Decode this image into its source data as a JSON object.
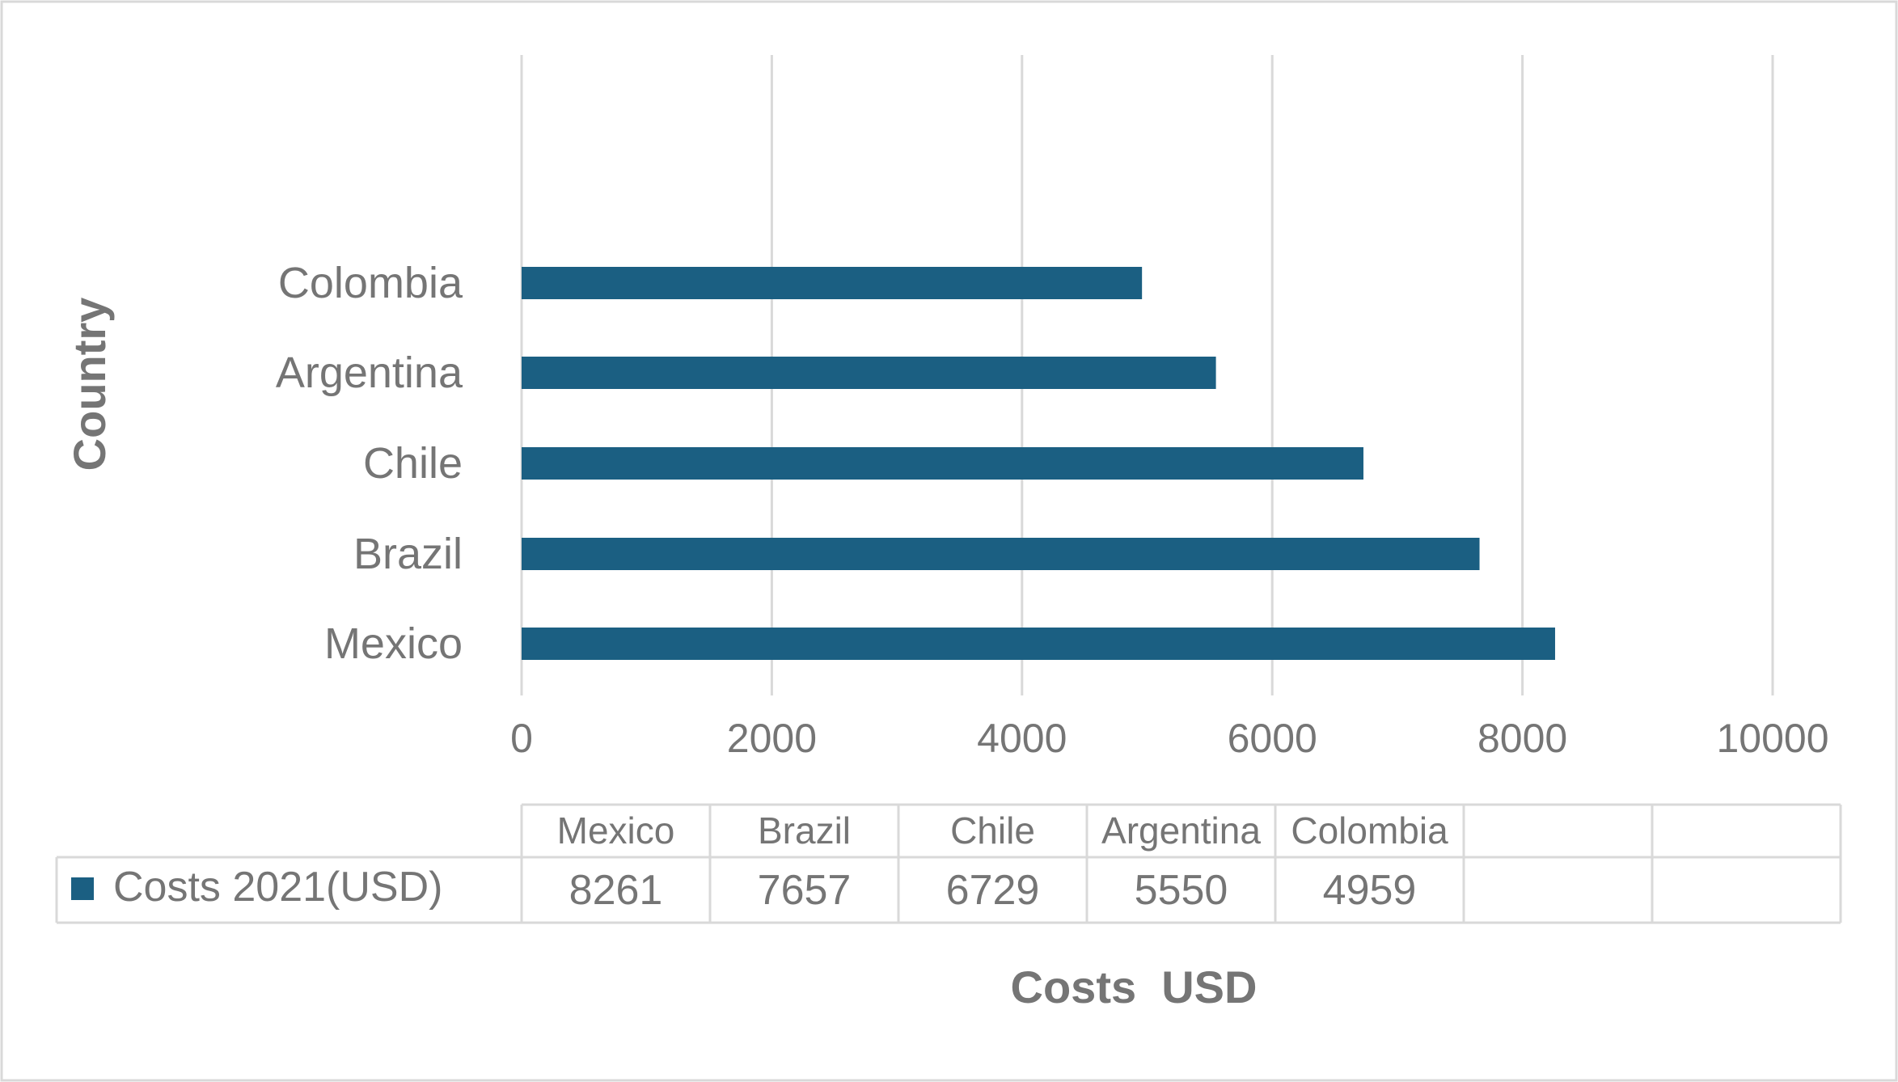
{
  "chart_data": {
    "type": "bar",
    "orientation": "horizontal",
    "title": "",
    "xlabel": "Costs  USD",
    "ylabel": "Country",
    "categories": [
      "Mexico",
      "Brazil",
      "Chile",
      "Argentina",
      "Colombia"
    ],
    "series": [
      {
        "name": "Costs 2021(USD)",
        "values": [
          8261,
          7657,
          6729,
          5550,
          4959
        ]
      }
    ],
    "xlim": [
      0,
      10000
    ],
    "x_ticks": [
      0,
      2000,
      4000,
      6000,
      8000,
      10000
    ],
    "x_tick_labels": [
      "0",
      "2000",
      "4000",
      "6000",
      "8000",
      "10000"
    ],
    "grid": true,
    "legend": "data-table",
    "data_table": {
      "headers": [
        "Mexico",
        "Brazil",
        "Chile",
        "Argentina",
        "Colombia",
        "",
        ""
      ],
      "row_label": "Costs 2021(USD)",
      "values": [
        "8261",
        "7657",
        "6729",
        "5550",
        "4959",
        "",
        ""
      ]
    },
    "colors": {
      "bar": "#1b5f82",
      "grid": "#d9d9d9",
      "text": "#757575",
      "border": "#d9d9d9"
    }
  }
}
